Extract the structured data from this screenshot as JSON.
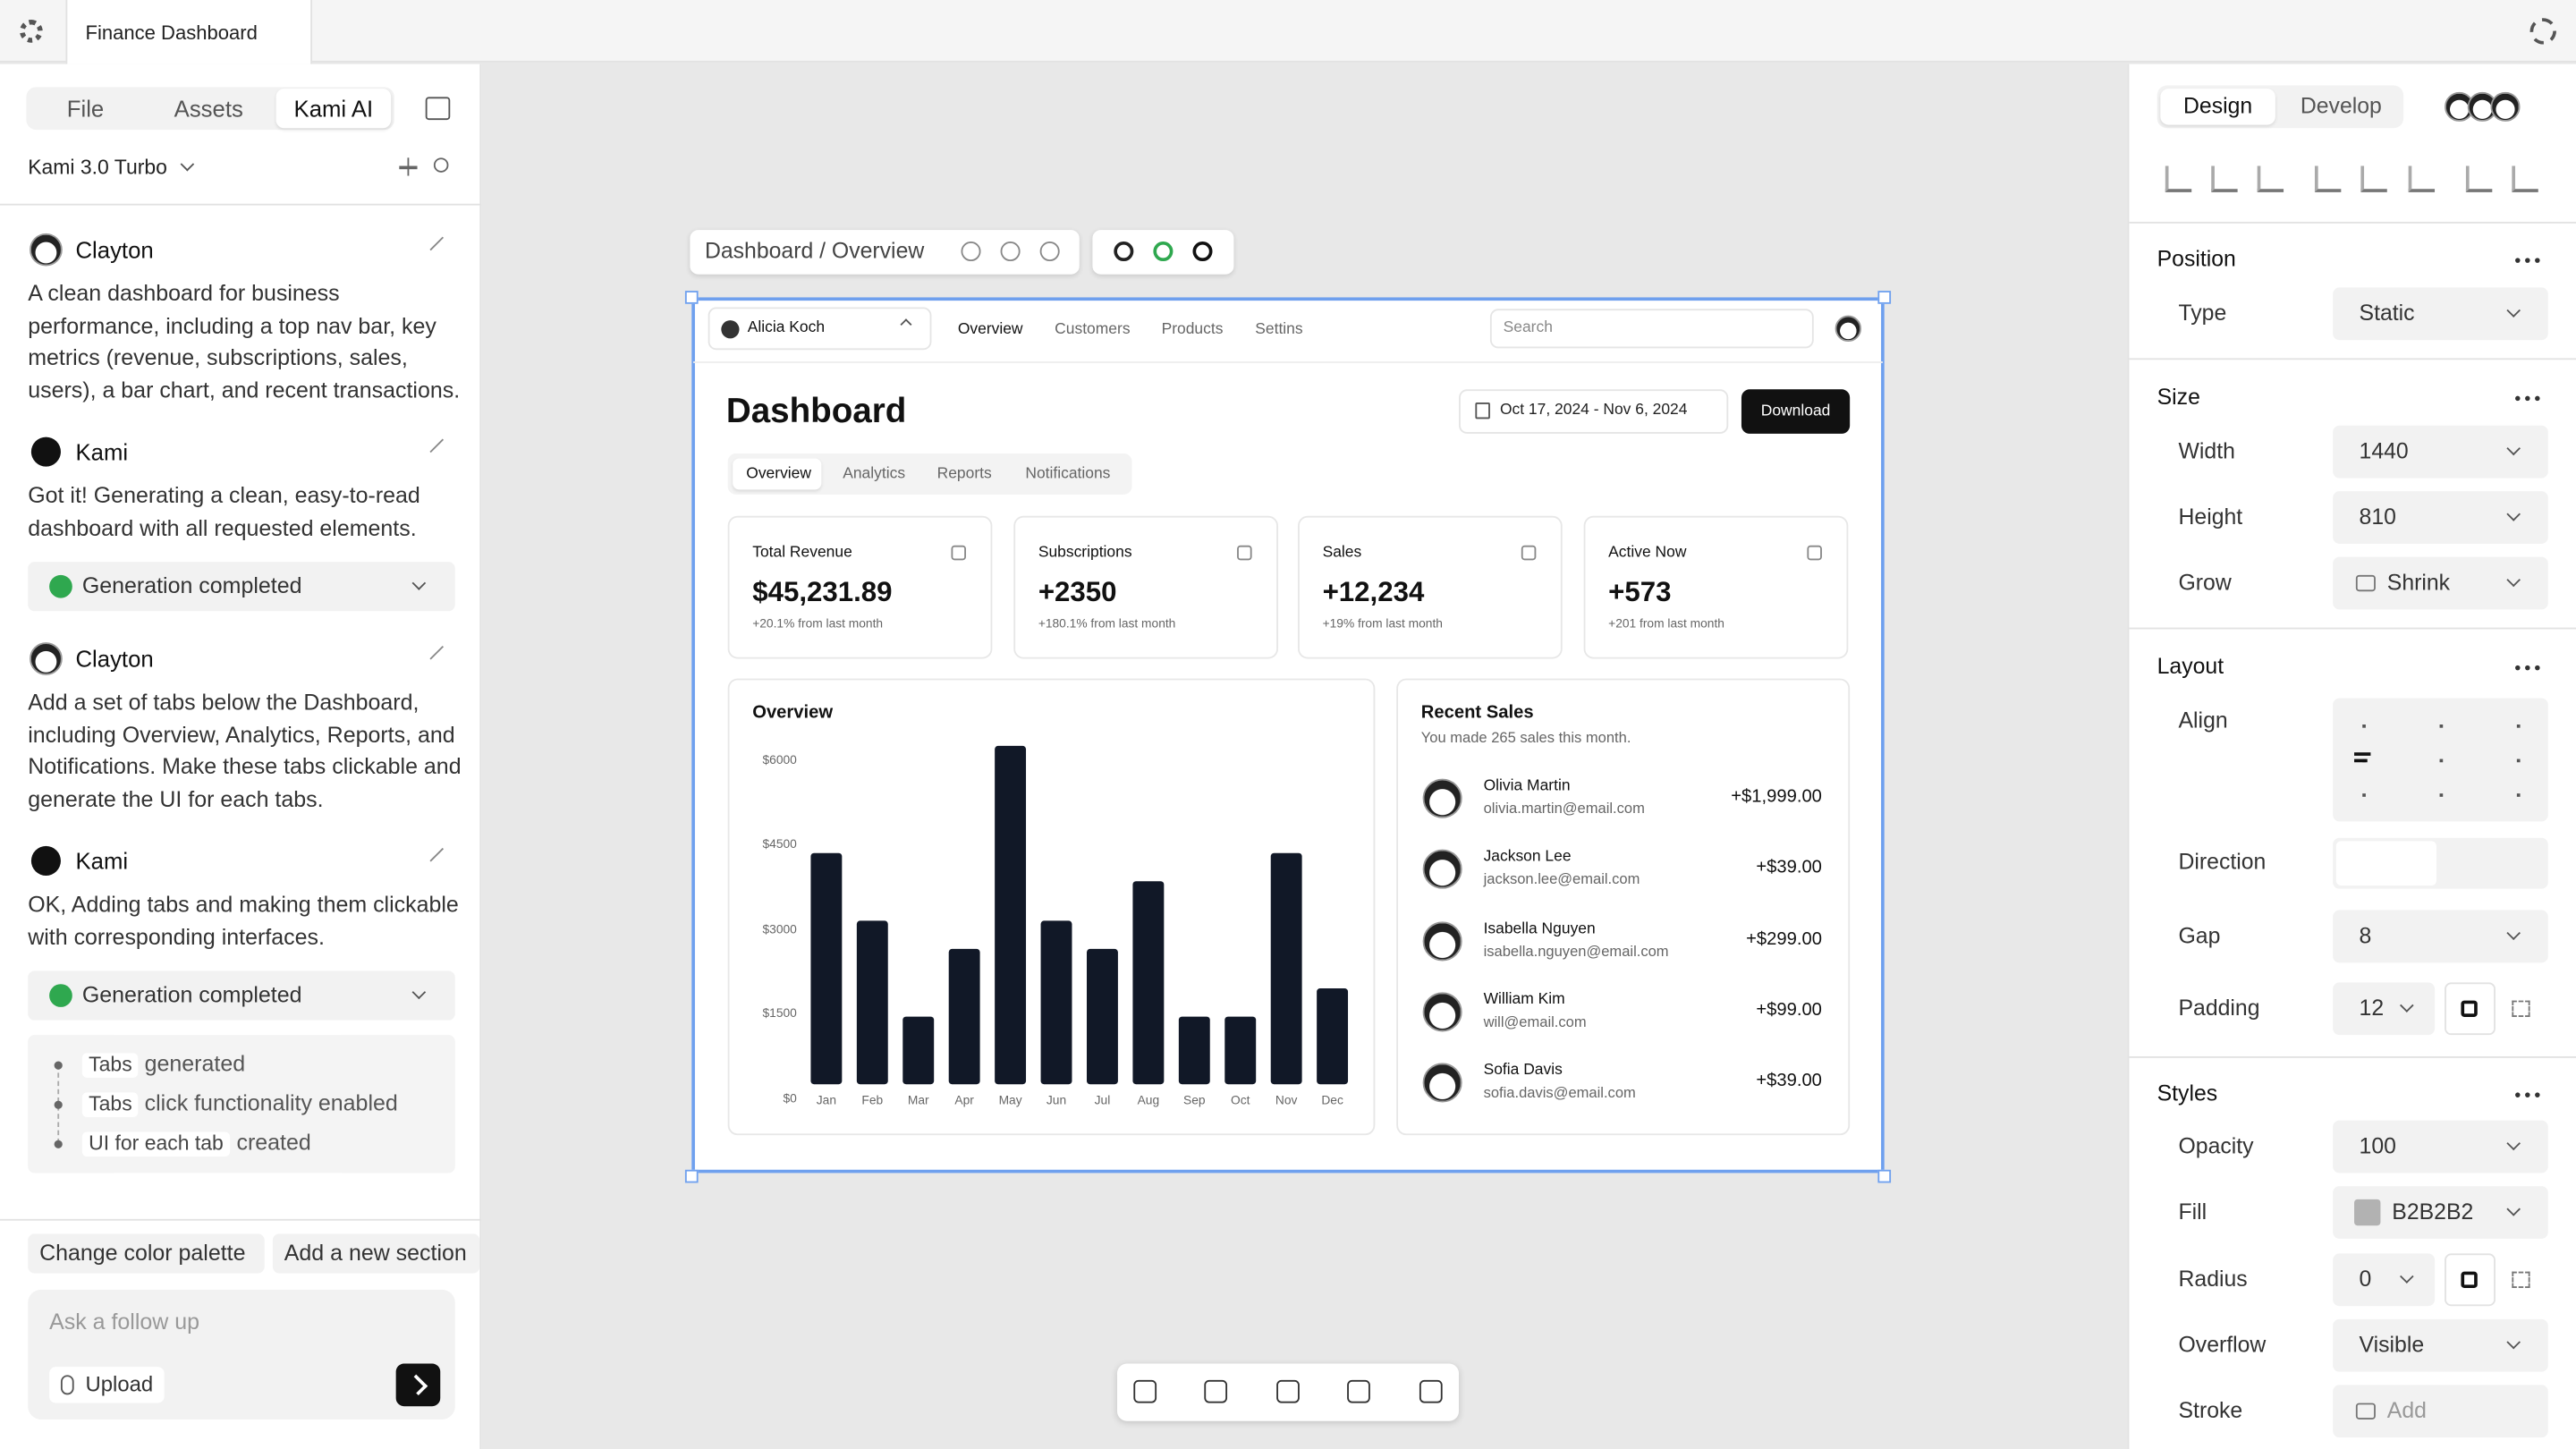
{
  "tab": {
    "title": "Finance Dashboard"
  },
  "left_panel": {
    "tabs": [
      "File",
      "Assets",
      "Kami AI"
    ],
    "model": "Kami 3.0 Turbo",
    "messages": [
      {
        "author": "Clayton",
        "text": "A clean dashboard for business performance, including a top nav bar, key metrics (revenue, subscriptions, sales, users), a bar chart, and recent transactions."
      },
      {
        "author": "Kami",
        "text": "Got it! Generating a clean, easy-to-read dashboard with all requested elements.",
        "status": "Generation completed"
      },
      {
        "author": "Clayton",
        "text": "Add a set of tabs below the Dashboard, including Overview, Analytics, Reports, and Notifications. Make these tabs clickable and generate the UI for each tabs."
      },
      {
        "author": "Kami",
        "text": "OK, Adding tabs and making them clickable with corresponding interfaces.",
        "status": "Generation completed",
        "items": [
          {
            "tag": "Tabs",
            "text": "generated"
          },
          {
            "tag": "Tabs",
            "text": "click functionality enabled"
          },
          {
            "tag": "UI for each tab",
            "text": "created"
          }
        ]
      }
    ],
    "suggestions": [
      "Change color palette",
      "Add a new section"
    ],
    "input_placeholder": "Ask a follow up",
    "upload": "Upload"
  },
  "canvas": {
    "breadcrumb": "Dashboard / Overview",
    "dashboard": {
      "user": "Alicia Koch",
      "nav": [
        "Overview",
        "Customers",
        "Products",
        "Settins"
      ],
      "search": "Search",
      "title": "Dashboard",
      "date_range": "Oct 17, 2024 - Nov 6, 2024",
      "download": "Download",
      "tabs": [
        "Overview",
        "Analytics",
        "Reports",
        "Notifications"
      ],
      "cards": [
        {
          "label": "Total Revenue",
          "value": "$45,231.89",
          "change": "+20.1% from last month"
        },
        {
          "label": "Subscriptions",
          "value": "+2350",
          "change": "+180.1% from last month"
        },
        {
          "label": "Sales",
          "value": "+12,234",
          "change": "+19% from last month"
        },
        {
          "label": "Active Now",
          "value": "+573",
          "change": "+201 from last month"
        }
      ],
      "chart": {
        "type": "bar",
        "title": "Overview",
        "categories": [
          "Jan",
          "Feb",
          "Mar",
          "Apr",
          "May",
          "Jun",
          "Jul",
          "Aug",
          "Sep",
          "Oct",
          "Nov",
          "Dec"
        ],
        "values": [
          4100,
          2900,
          1200,
          2400,
          6000,
          2900,
          2400,
          3600,
          1200,
          1200,
          4100,
          1700
        ],
        "color": "#111827",
        "ylim": [
          0,
          6000
        ],
        "yticks": [
          {
            "value": 0,
            "label": "$0"
          },
          {
            "value": 1500,
            "label": "$1500"
          },
          {
            "value": 3000,
            "label": "$3000"
          },
          {
            "value": 4500,
            "label": "$4500"
          },
          {
            "value": 6000,
            "label": "$6000"
          }
        ]
      },
      "recent_sales": {
        "title": "Recent Sales",
        "subtitle": "You made 265 sales this month.",
        "rows": [
          {
            "name": "Olivia Martin",
            "email": "olivia.martin@email.com",
            "amount": "+$1,999.00"
          },
          {
            "name": "Jackson Lee",
            "email": "jackson.lee@email.com",
            "amount": "+$39.00"
          },
          {
            "name": "Isabella Nguyen",
            "email": "isabella.nguyen@email.com",
            "amount": "+$299.00"
          },
          {
            "name": "William Kim",
            "email": "will@email.com",
            "amount": "+$99.00"
          },
          {
            "name": "Sofia Davis",
            "email": "sofia.davis@email.com",
            "amount": "+$39.00"
          }
        ]
      }
    }
  },
  "right_panel": {
    "tabs": [
      "Design",
      "Develop"
    ],
    "sections": [
      {
        "title": "Position",
        "rows": [
          {
            "label": "Type",
            "value": "Static"
          }
        ]
      },
      {
        "title": "Size",
        "rows": [
          {
            "label": "Width",
            "value": "1440"
          },
          {
            "label": "Height",
            "value": "810"
          },
          {
            "label": "Grow",
            "value": "Shrink"
          }
        ]
      },
      {
        "title": "Layout",
        "rows": [
          {
            "label": "Align"
          },
          {
            "label": "Direction"
          },
          {
            "label": "Gap",
            "value": "8"
          },
          {
            "label": "Padding",
            "value": "12"
          }
        ]
      },
      {
        "title": "Styles",
        "rows": [
          {
            "label": "Opacity",
            "value": "100"
          },
          {
            "label": "Fill",
            "value": "B2B2B2"
          },
          {
            "label": "Radius",
            "value": "0"
          },
          {
            "label": "Overflow",
            "value": "Visible"
          },
          {
            "label": "Stroke",
            "value": "Add"
          }
        ]
      }
    ]
  }
}
